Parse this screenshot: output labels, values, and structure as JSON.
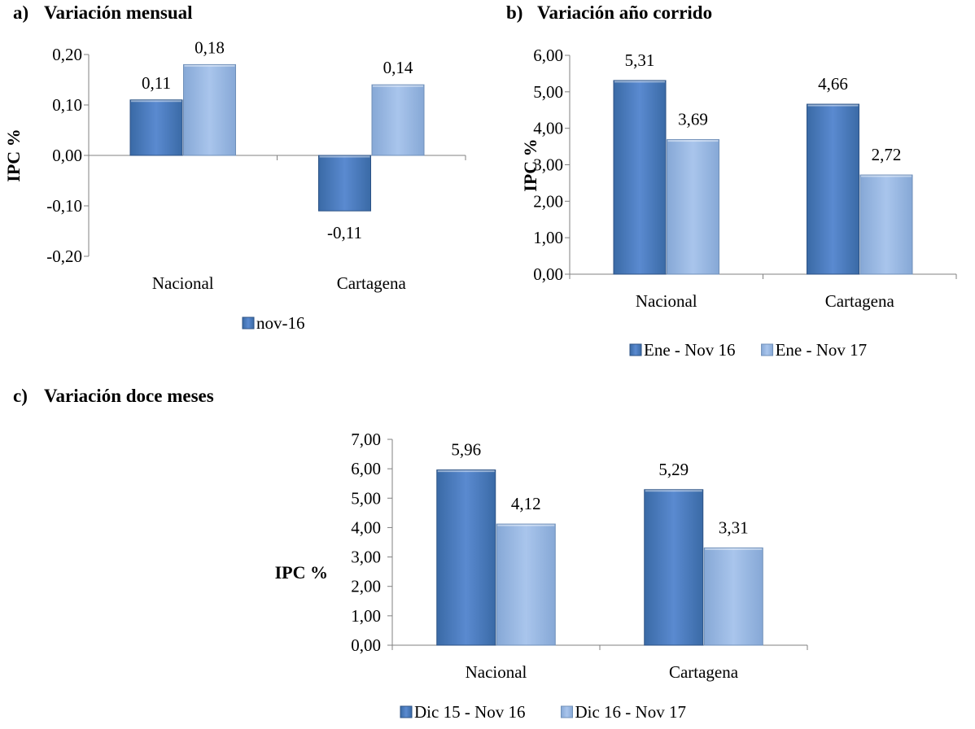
{
  "chart_data": [
    {
      "type": "bar",
      "panel": "a)",
      "title": "Variación mensual",
      "ylabel": "IPC %",
      "xlabel": "",
      "categories": [
        "Nacional",
        "Cartagena"
      ],
      "ylim": [
        -0.2,
        0.2
      ],
      "yticks": [
        "0,20",
        "0,10",
        "0,00",
        "-0,10",
        "-0,20"
      ],
      "series": [
        {
          "name": "nov-16",
          "values": [
            0.11,
            -0.11
          ],
          "labels": [
            "0,11",
            "-0,11"
          ],
          "color": "#4f81bd"
        },
        {
          "name": "",
          "values": [
            0.18,
            0.14
          ],
          "labels": [
            "0,18",
            "0,14"
          ],
          "color": "#95b3d7"
        }
      ],
      "legend": "bottom",
      "grid": false
    },
    {
      "type": "bar",
      "panel": "b)",
      "title": "Variación año corrido",
      "ylabel": "IPC %",
      "xlabel": "",
      "categories": [
        "Nacional",
        "Cartagena"
      ],
      "ylim": [
        0,
        6
      ],
      "yticks": [
        "6,00",
        "5,00",
        "4,00",
        "3,00",
        "2,00",
        "1,00",
        "0,00"
      ],
      "series": [
        {
          "name": "Ene - Nov 16",
          "values": [
            5.31,
            4.66
          ],
          "labels": [
            "5,31",
            "4,66"
          ],
          "color": "#4f81bd"
        },
        {
          "name": "Ene - Nov 17",
          "values": [
            3.69,
            2.72
          ],
          "labels": [
            "3,69",
            "2,72"
          ],
          "color": "#95b3d7"
        }
      ],
      "legend": "bottom",
      "grid": false
    },
    {
      "type": "bar",
      "panel": "c)",
      "title": "Variación doce meses",
      "ylabel": "IPC %",
      "xlabel": "",
      "categories": [
        "Nacional",
        "Cartagena"
      ],
      "ylim": [
        0,
        7
      ],
      "yticks": [
        "7,00",
        "6,00",
        "5,00",
        "4,00",
        "3,00",
        "2,00",
        "1,00",
        "0,00"
      ],
      "series": [
        {
          "name": "Dic 15 - Nov 16",
          "values": [
            5.96,
            5.29
          ],
          "labels": [
            "5,96",
            "5,29"
          ],
          "color": "#4f81bd"
        },
        {
          "name": "Dic 16 - Nov 17",
          "values": [
            4.12,
            3.31
          ],
          "labels": [
            "4,12",
            "3,31"
          ],
          "color": "#95b3d7"
        }
      ],
      "legend": "bottom",
      "grid": false
    }
  ]
}
